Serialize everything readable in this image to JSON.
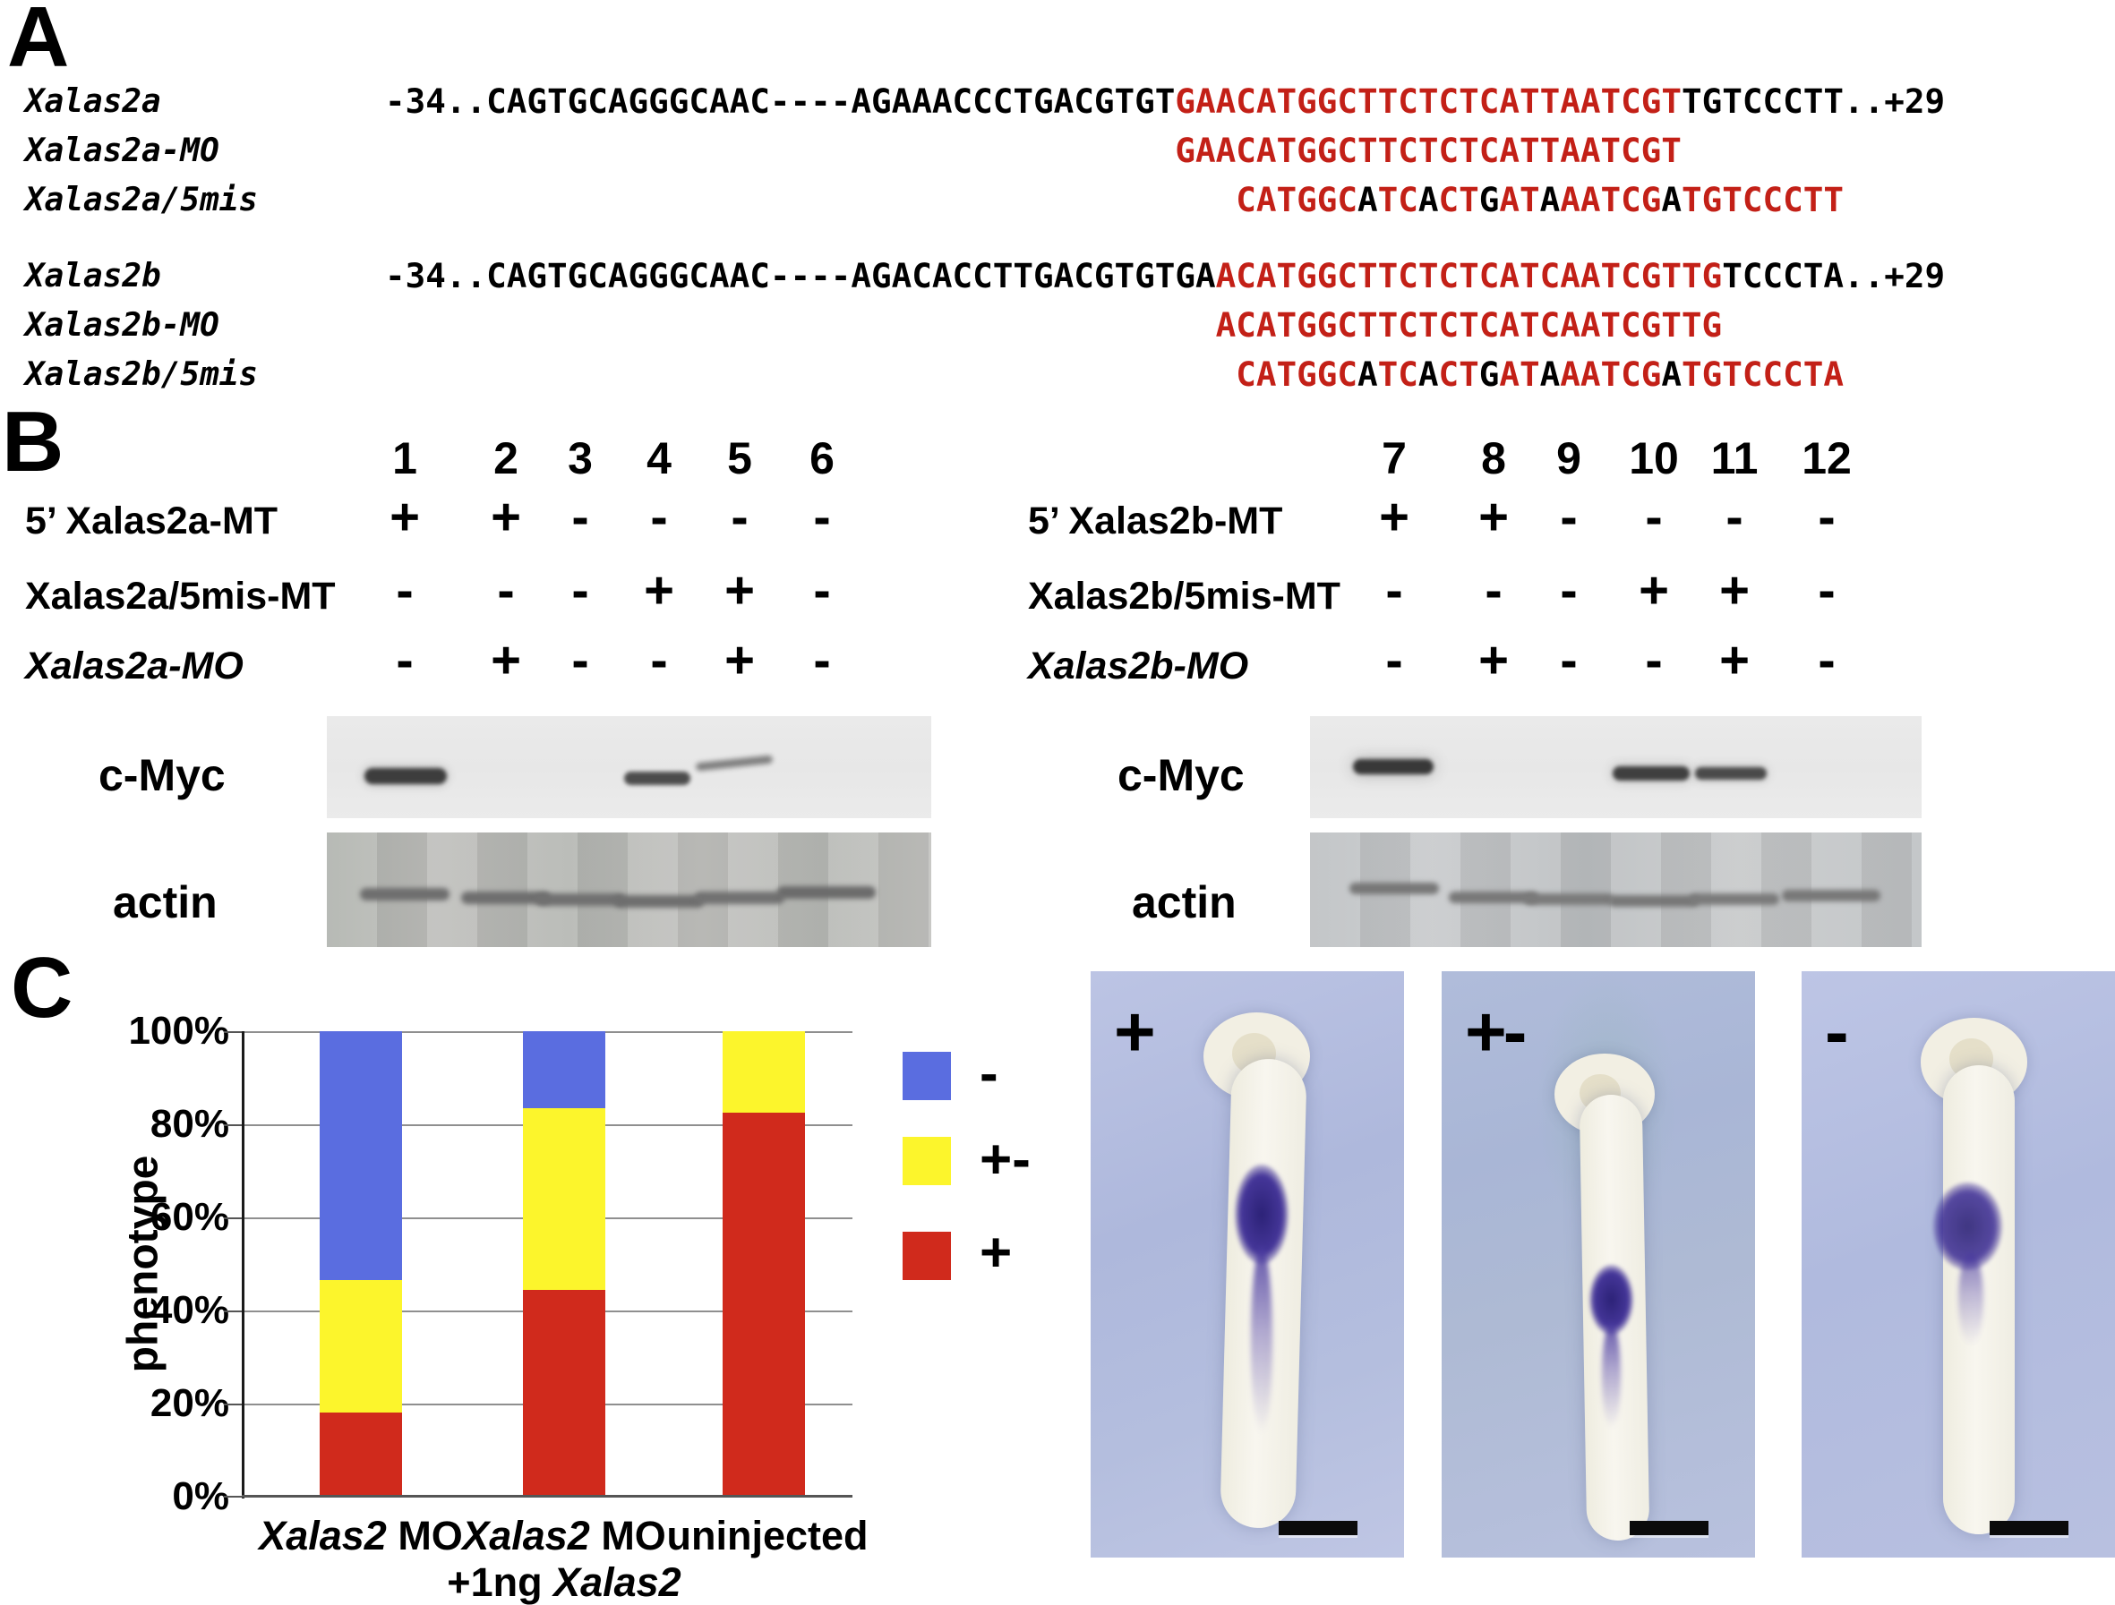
{
  "panelA": {
    "label": "A",
    "highlight_color": "#c32017",
    "blocks": [
      {
        "rows": [
          {
            "name": "Xalas2a",
            "segments": [
              {
                "color": "black",
                "text": "-34..CAGTGCAGGGCAAC----AGAAACCCTGACGTGT"
              },
              {
                "color": "red",
                "text": "GAACATGGCTTCTCTCATTAATCGT"
              },
              {
                "color": "black",
                "text": "TGTCCCTT..+29"
              }
            ]
          },
          {
            "name": "Xalas2a-MO",
            "segments": [
              {
                "color": "red",
                "text": "                                       GAACATGGCTTCTCTCATTAATCGT"
              }
            ]
          },
          {
            "name": "Xalas2a/5mis",
            "segments": [
              {
                "color": "red",
                "text": "                                          CATGGC"
              },
              {
                "color": "black",
                "text": "A"
              },
              {
                "color": "red",
                "text": "TC"
              },
              {
                "color": "black",
                "text": "A"
              },
              {
                "color": "red",
                "text": "CT"
              },
              {
                "color": "black",
                "text": "G"
              },
              {
                "color": "red",
                "text": "AT"
              },
              {
                "color": "black",
                "text": "A"
              },
              {
                "color": "red",
                "text": "AATCG"
              },
              {
                "color": "black",
                "text": "A"
              },
              {
                "color": "red",
                "text": "TGTCCCTT"
              }
            ]
          }
        ]
      },
      {
        "rows": [
          {
            "name": "Xalas2b",
            "segments": [
              {
                "color": "black",
                "text": "-34..CAGTGCAGGGCAAC----AGACACCTTGACGTGTGA"
              },
              {
                "color": "red",
                "text": "ACATGGCTTCTCTCATCAATCGTTG"
              },
              {
                "color": "black",
                "text": "TCCCTA..+29"
              }
            ]
          },
          {
            "name": "Xalas2b-MO",
            "segments": [
              {
                "color": "red",
                "text": "                                         ACATGGCTTCTCTCATCAATCGTTG"
              }
            ]
          },
          {
            "name": "Xalas2b/5mis",
            "segments": [
              {
                "color": "red",
                "text": "                                          CATGGC"
              },
              {
                "color": "black",
                "text": "A"
              },
              {
                "color": "red",
                "text": "TC"
              },
              {
                "color": "black",
                "text": "A"
              },
              {
                "color": "red",
                "text": "CT"
              },
              {
                "color": "black",
                "text": "G"
              },
              {
                "color": "red",
                "text": "AT"
              },
              {
                "color": "black",
                "text": "A"
              },
              {
                "color": "red",
                "text": "AATCG"
              },
              {
                "color": "black",
                "text": "A"
              },
              {
                "color": "red",
                "text": "TGTCCCTA"
              }
            ]
          }
        ]
      }
    ]
  },
  "panelB": {
    "label": "B",
    "left": {
      "lanes": [
        "1",
        "2",
        "3",
        "4",
        "5",
        "6"
      ],
      "rows": [
        {
          "label": "5’ Xalas2a-MT",
          "signs": [
            "+",
            "+",
            "-",
            "-",
            "-",
            "-"
          ]
        },
        {
          "label": "Xalas2a/5mis-MT",
          "signs": [
            "-",
            "-",
            "-",
            "+",
            "+",
            "-"
          ]
        },
        {
          "label": "Xalas2a-MO",
          "signs": [
            "-",
            "+",
            "-",
            "-",
            "+",
            "-"
          ]
        }
      ],
      "blot_labels": [
        "c-Myc",
        "actin"
      ],
      "cmyc_bands_in_lanes": [
        "1",
        "4",
        "5"
      ]
    },
    "right": {
      "lanes": [
        "7",
        "8",
        "9",
        "10",
        "11",
        "12"
      ],
      "rows": [
        {
          "label": "5’ Xalas2b-MT",
          "signs": [
            "+",
            "+",
            "-",
            "-",
            "-",
            "-"
          ]
        },
        {
          "label": "Xalas2b/5mis-MT",
          "signs": [
            "-",
            "-",
            "-",
            "+",
            "+",
            "-"
          ]
        },
        {
          "label": "Xalas2b-MO",
          "signs": [
            "-",
            "+",
            "-",
            "-",
            "+",
            "-"
          ]
        }
      ],
      "blot_labels": [
        "c-Myc",
        "actin"
      ],
      "cmyc_bands_in_lanes": [
        "7",
        "10",
        "11"
      ]
    }
  },
  "panelC": {
    "label": "C",
    "ylabel": "phenotype",
    "yticks": [
      "100%",
      "80%",
      "60%",
      "40%",
      "20%",
      "0%"
    ],
    "legend": [
      {
        "symbol": "-"
      },
      {
        "symbol": "+-"
      },
      {
        "symbol": "+"
      }
    ],
    "xlabels": [
      {
        "italic": "Xalas2",
        "rest": " MO"
      },
      {
        "italic": "Xalas2",
        "rest": " MO",
        "line2_plain": "+1ng ",
        "line2_italic": "Xalas2"
      },
      {
        "plain": "uninjected"
      }
    ],
    "photos": [
      {
        "label": "+"
      },
      {
        "label": "+-"
      },
      {
        "label": "-"
      }
    ]
  },
  "chart_data": {
    "type": "bar",
    "stacked": true,
    "title": "",
    "xlabel": "",
    "ylabel": "phenotype",
    "ylim": [
      0,
      100
    ],
    "yticks_percent": [
      0,
      20,
      40,
      60,
      80,
      100
    ],
    "grid": true,
    "legend_position": "right",
    "categories": [
      "Xalas2 MO",
      "Xalas2 MO +1ng Xalas2",
      "uninjected"
    ],
    "series": [
      {
        "name": "+",
        "color": "#d02a1c",
        "values": [
          18,
          44.5,
          82.5
        ]
      },
      {
        "name": "+-",
        "color": "#fcf52c",
        "values": [
          28.5,
          39,
          17.5
        ]
      },
      {
        "name": "-",
        "color": "#5a6de0",
        "values": [
          53.5,
          16.5,
          0
        ]
      }
    ]
  }
}
